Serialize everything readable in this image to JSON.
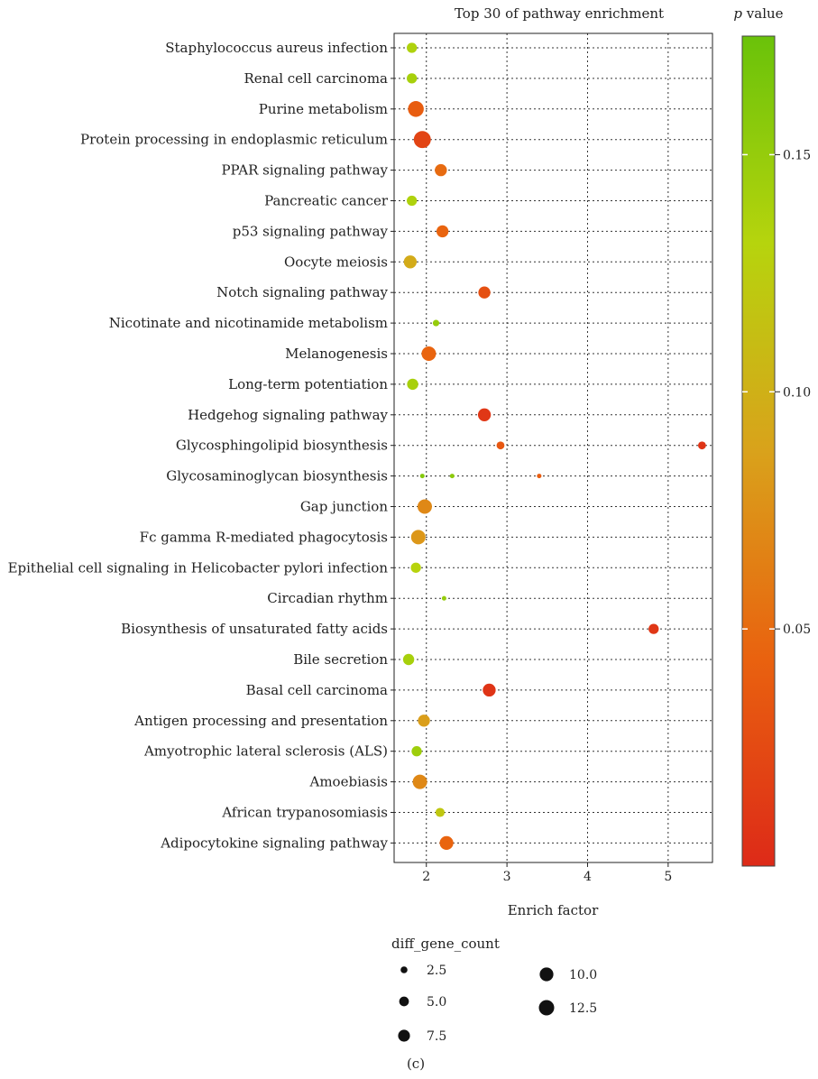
{
  "chart_data": {
    "type": "scatter",
    "title": "Top 30 of pathway enrichment",
    "xlabel": "Enrich factor",
    "ylabel": "",
    "xlim": [
      1.6,
      5.55
    ],
    "xticks": [
      2,
      3,
      4,
      5
    ],
    "grid": true,
    "categories": [
      "Staphylococcus aureus infection",
      "Renal cell carcinoma",
      "Purine metabolism",
      "Protein processing in endoplasmic reticulum",
      "PPAR signaling pathway",
      "Pancreatic cancer",
      "p53 signaling pathway",
      "Oocyte meiosis",
      "Notch signaling pathway",
      "Nicotinate and nicotinamide metabolism",
      "Melanogenesis",
      "Long-term potentiation",
      "Hedgehog signaling pathway",
      "Glycosphingolipid biosynthesis",
      "Glycosaminoglycan biosynthesis",
      "Gap junction",
      "Fc gamma R-mediated phagocytosis",
      "Epithelial cell signaling in Helicobacter pylori infection",
      "Circadian rhythm",
      "Biosynthesis of unsaturated fatty acids",
      "Bile secretion",
      "Basal cell carcinoma",
      "Antigen processing and presentation",
      "Amyotrophic lateral sclerosis (ALS)",
      "Amoebiasis",
      "African trypanosomiasis",
      "Adipocytokine signaling pathway"
    ],
    "points": [
      {
        "pathway": "Staphylococcus aureus infection",
        "x": 1.82,
        "p": 0.135,
        "count": 5
      },
      {
        "pathway": "Renal cell carcinoma",
        "x": 1.82,
        "p": 0.14,
        "count": 5
      },
      {
        "pathway": "Purine metabolism",
        "x": 1.87,
        "p": 0.04,
        "count": 12
      },
      {
        "pathway": "Protein processing in endoplasmic reticulum",
        "x": 1.95,
        "p": 0.02,
        "count": 14
      },
      {
        "pathway": "PPAR signaling pathway",
        "x": 2.18,
        "p": 0.05,
        "count": 7
      },
      {
        "pathway": "Pancreatic cancer",
        "x": 1.82,
        "p": 0.135,
        "count": 5
      },
      {
        "pathway": "p53 signaling pathway",
        "x": 2.2,
        "p": 0.045,
        "count": 7
      },
      {
        "pathway": "Oocyte meiosis",
        "x": 1.8,
        "p": 0.095,
        "count": 8
      },
      {
        "pathway": "Notch signaling pathway",
        "x": 2.72,
        "p": 0.03,
        "count": 7
      },
      {
        "pathway": "Nicotinate and nicotinamide metabolism",
        "x": 2.12,
        "p": 0.15,
        "count": 2
      },
      {
        "pathway": "Melanogenesis",
        "x": 2.03,
        "p": 0.045,
        "count": 10
      },
      {
        "pathway": "Long-term potentiation",
        "x": 1.83,
        "p": 0.14,
        "count": 6
      },
      {
        "pathway": "Hedgehog signaling pathway",
        "x": 2.72,
        "p": 0.01,
        "count": 8
      },
      {
        "pathway": "Glycosphingolipid biosynthesis",
        "x": 2.92,
        "p": 0.035,
        "count": 3
      },
      {
        "pathway": "Glycosphingolipid biosynthesis",
        "x": 5.42,
        "p": 0.008,
        "count": 3
      },
      {
        "pathway": "Glycosaminoglycan biosynthesis",
        "x": 1.95,
        "p": 0.16,
        "count": 1
      },
      {
        "pathway": "Glycosaminoglycan biosynthesis",
        "x": 2.32,
        "p": 0.155,
        "count": 1
      },
      {
        "pathway": "Glycosaminoglycan biosynthesis",
        "x": 3.4,
        "p": 0.04,
        "count": 1
      },
      {
        "pathway": "Gap junction",
        "x": 1.98,
        "p": 0.07,
        "count": 10
      },
      {
        "pathway": "Fc gamma R-mediated phagocytosis",
        "x": 1.9,
        "p": 0.08,
        "count": 10
      },
      {
        "pathway": "Epithelial cell signaling in Helicobacter pylori infection",
        "x": 1.87,
        "p": 0.13,
        "count": 5
      },
      {
        "pathway": "Circadian rhythm",
        "x": 2.22,
        "p": 0.15,
        "count": 1
      },
      {
        "pathway": "Biosynthesis of unsaturated fatty acids",
        "x": 4.82,
        "p": 0.01,
        "count": 5
      },
      {
        "pathway": "Bile secretion",
        "x": 1.78,
        "p": 0.14,
        "count": 6
      },
      {
        "pathway": "Basal cell carcinoma",
        "x": 2.78,
        "p": 0.008,
        "count": 8
      },
      {
        "pathway": "Antigen processing and presentation",
        "x": 1.97,
        "p": 0.085,
        "count": 7
      },
      {
        "pathway": "Amyotrophic lateral sclerosis (ALS)",
        "x": 1.88,
        "p": 0.145,
        "count": 5
      },
      {
        "pathway": "Amoebiasis",
        "x": 1.92,
        "p": 0.07,
        "count": 10
      },
      {
        "pathway": "African trypanosomiasis",
        "x": 2.17,
        "p": 0.12,
        "count": 4
      },
      {
        "pathway": "Adipocytokine signaling pathway",
        "x": 2.25,
        "p": 0.045,
        "count": 9
      }
    ],
    "colorbar": {
      "label": "p value",
      "label_italic": "p",
      "label_rest": " value",
      "range": [
        0,
        0.175
      ],
      "ticks": [
        0.05,
        0.1,
        0.15
      ],
      "tick_labels": [
        "0.05",
        "0.10",
        "0.15"
      ],
      "colors": [
        "#dd2a18",
        "#e9620f",
        "#d9a21b",
        "#b6d40d",
        "#6ac20a"
      ]
    },
    "size_legend": {
      "title": "diff_gene_count",
      "entries": [
        {
          "value": 2.5,
          "label": "2.5"
        },
        {
          "value": 5.0,
          "label": "5.0"
        },
        {
          "value": 7.5,
          "label": "7.5"
        },
        {
          "value": 10.0,
          "label": "10.0"
        },
        {
          "value": 12.5,
          "label": "12.5"
        }
      ],
      "color": "#111111"
    },
    "caption": "(c)"
  }
}
